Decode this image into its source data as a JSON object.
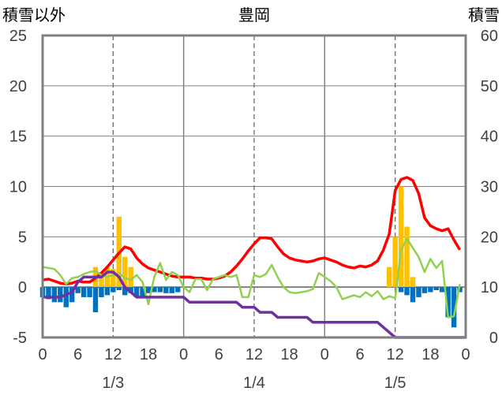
{
  "chart_data": {
    "type": "bar+line",
    "title": "豊岡",
    "left_axis_label": "積雪以外",
    "right_axis_label": "積雪",
    "left_ylim": [
      -5,
      25
    ],
    "left_yticks": [
      "25",
      "20",
      "15",
      "10",
      "5",
      "0",
      "-5"
    ],
    "right_ylim": [
      0,
      60
    ],
    "right_yticks": [
      "60",
      "50",
      "40",
      "30",
      "20",
      "10",
      "0"
    ],
    "x_hours": [
      0,
      72
    ],
    "x_tick_labels": [
      "0",
      "6",
      "12",
      "18",
      "0",
      "6",
      "12",
      "18",
      "0",
      "6",
      "12",
      "18",
      "0"
    ],
    "date_labels": [
      "1/3",
      "1/4",
      "1/5"
    ],
    "grid": true,
    "colors": {
      "red_line": "#ff0000",
      "green_line": "#92d050",
      "purple_line": "#7030a0",
      "orange_bars": "#ffc000",
      "blue_bars": "#0070c0",
      "axes": "#808080"
    },
    "series": [
      {
        "color": "#ff0000",
        "axis": "left",
        "type": "line",
        "x": [
          0,
          1,
          2,
          3,
          4,
          5,
          6,
          7,
          8,
          9,
          10,
          11,
          12,
          13,
          14,
          15,
          16,
          17,
          18,
          19,
          20,
          21,
          22,
          23,
          24,
          25,
          26,
          27,
          28,
          29,
          30,
          31,
          32,
          33,
          34,
          35,
          36,
          37,
          38,
          39,
          40,
          41,
          42,
          43,
          44,
          45,
          46,
          47,
          48,
          49,
          50,
          51,
          52,
          53,
          54,
          55,
          56,
          57,
          58,
          59,
          60,
          61,
          62,
          63,
          64,
          65,
          66,
          67,
          68,
          69,
          70,
          71
        ],
        "values": [
          0.7,
          0.8,
          0.6,
          0.4,
          0.3,
          0.4,
          0.6,
          0.5,
          0.5,
          0.9,
          1.4,
          2.0,
          2.7,
          3.4,
          4.0,
          3.8,
          2.9,
          2.3,
          1.9,
          1.7,
          1.5,
          1.3,
          1.1,
          1.0,
          1.0,
          1.0,
          0.9,
          0.9,
          0.8,
          0.8,
          0.9,
          1.1,
          1.5,
          2.1,
          2.8,
          3.6,
          4.3,
          4.9,
          4.9,
          4.8,
          4.0,
          3.3,
          2.9,
          2.7,
          2.6,
          2.5,
          2.6,
          2.8,
          2.9,
          2.7,
          2.5,
          2.2,
          2.0,
          1.9,
          2.1,
          2.0,
          2.2,
          2.6,
          3.7,
          5.3,
          9.6,
          10.7,
          10.9,
          10.6,
          9.3,
          6.9,
          6.1,
          5.8,
          5.6,
          5.8,
          4.7,
          3.7
        ]
      },
      {
        "color": "#92d050",
        "axis": "left",
        "type": "line",
        "x": [
          0,
          1,
          2,
          3,
          4,
          5,
          6,
          7,
          8,
          9,
          10,
          11,
          12,
          13,
          14,
          15,
          16,
          17,
          18,
          19,
          20,
          21,
          22,
          23,
          24,
          25,
          26,
          27,
          28,
          29,
          30,
          31,
          32,
          33,
          34,
          35,
          36,
          37,
          38,
          39,
          40,
          41,
          42,
          43,
          44,
          45,
          46,
          47,
          48,
          49,
          50,
          51,
          52,
          53,
          54,
          55,
          56,
          57,
          58,
          59,
          60,
          61,
          62,
          63,
          64,
          65,
          66,
          67,
          68,
          69,
          70,
          71
        ],
        "values": [
          2.0,
          1.9,
          1.8,
          1.2,
          0.3,
          0.9,
          1.0,
          1.3,
          1.5,
          1.6,
          1.2,
          1.0,
          1.2,
          1.4,
          0.9,
          0.7,
          1.2,
          0.5,
          -1.7,
          1.0,
          2.4,
          0.7,
          1.5,
          1.2,
          0.0,
          -0.5,
          0.8,
          0.8,
          -0.3,
          0.8,
          1.0,
          1.2,
          1.0,
          1.2,
          -1.0,
          -1.0,
          1.2,
          1.0,
          1.3,
          2.2,
          1.0,
          0.0,
          -0.5,
          -0.6,
          -0.5,
          -0.4,
          -0.2,
          1.4,
          1.0,
          0.6,
          0.0,
          -1.2,
          -1.0,
          -0.8,
          -1.0,
          -0.5,
          -0.9,
          -0.4,
          -1.2,
          -0.9,
          -1.1,
          3.7,
          4.8,
          3.9,
          3.0,
          1.5,
          2.8,
          1.9,
          2.6,
          -3.0,
          -2.9,
          0.3
        ]
      },
      {
        "color": "#7030a0",
        "axis": "left",
        "type": "step",
        "x": [
          0,
          3,
          5,
          6,
          7,
          8,
          9,
          10,
          11,
          12,
          13,
          14,
          15,
          16,
          24,
          25,
          33,
          34,
          36,
          37,
          39,
          40,
          45,
          46,
          48,
          49,
          57,
          58,
          60,
          61,
          72
        ],
        "values": [
          -1.0,
          -1.0,
          -0.5,
          0.5,
          1.0,
          1.0,
          1.0,
          1.0,
          1.5,
          1.5,
          1.0,
          0.0,
          -0.5,
          -1.0,
          -1.0,
          -1.5,
          -1.5,
          -2.0,
          -2.0,
          -2.5,
          -2.5,
          -3.0,
          -3.0,
          -3.5,
          -3.5,
          -3.5,
          -3.5,
          -4.0,
          -5.0,
          -5.0,
          -5.0
        ]
      },
      {
        "color": "#ffc000",
        "axis": "left",
        "type": "bar",
        "x": [
          9,
          10,
          11,
          12,
          13,
          14,
          15,
          59,
          60,
          61,
          62,
          63
        ],
        "values": [
          2.0,
          1.5,
          2.0,
          1.8,
          7.0,
          3.0,
          2.0,
          2.0,
          5.0,
          10.0,
          6.0,
          1.0
        ]
      },
      {
        "color": "#0070c0",
        "axis": "left",
        "type": "bar",
        "x": [
          0,
          1,
          2,
          3,
          4,
          5,
          6,
          7,
          8,
          9,
          10,
          11,
          12,
          13,
          14,
          15,
          16,
          17,
          18,
          19,
          20,
          21,
          22,
          23,
          61,
          62,
          63,
          64,
          65,
          66,
          67,
          68,
          69,
          70,
          71
        ],
        "values": [
          -1.0,
          -1.2,
          -1.5,
          -1.5,
          -2.0,
          -1.5,
          -0.6,
          -1.0,
          -1.0,
          -2.5,
          -1.0,
          -0.8,
          -0.5,
          -0.3,
          -0.8,
          -0.6,
          -1.0,
          -1.0,
          -0.6,
          -0.5,
          -0.5,
          -0.6,
          -0.6,
          -0.5,
          -0.5,
          -0.8,
          -1.5,
          -1.0,
          -0.6,
          -0.5,
          -0.3,
          -0.5,
          -3.0,
          -4.0,
          -0.5
        ]
      }
    ]
  }
}
